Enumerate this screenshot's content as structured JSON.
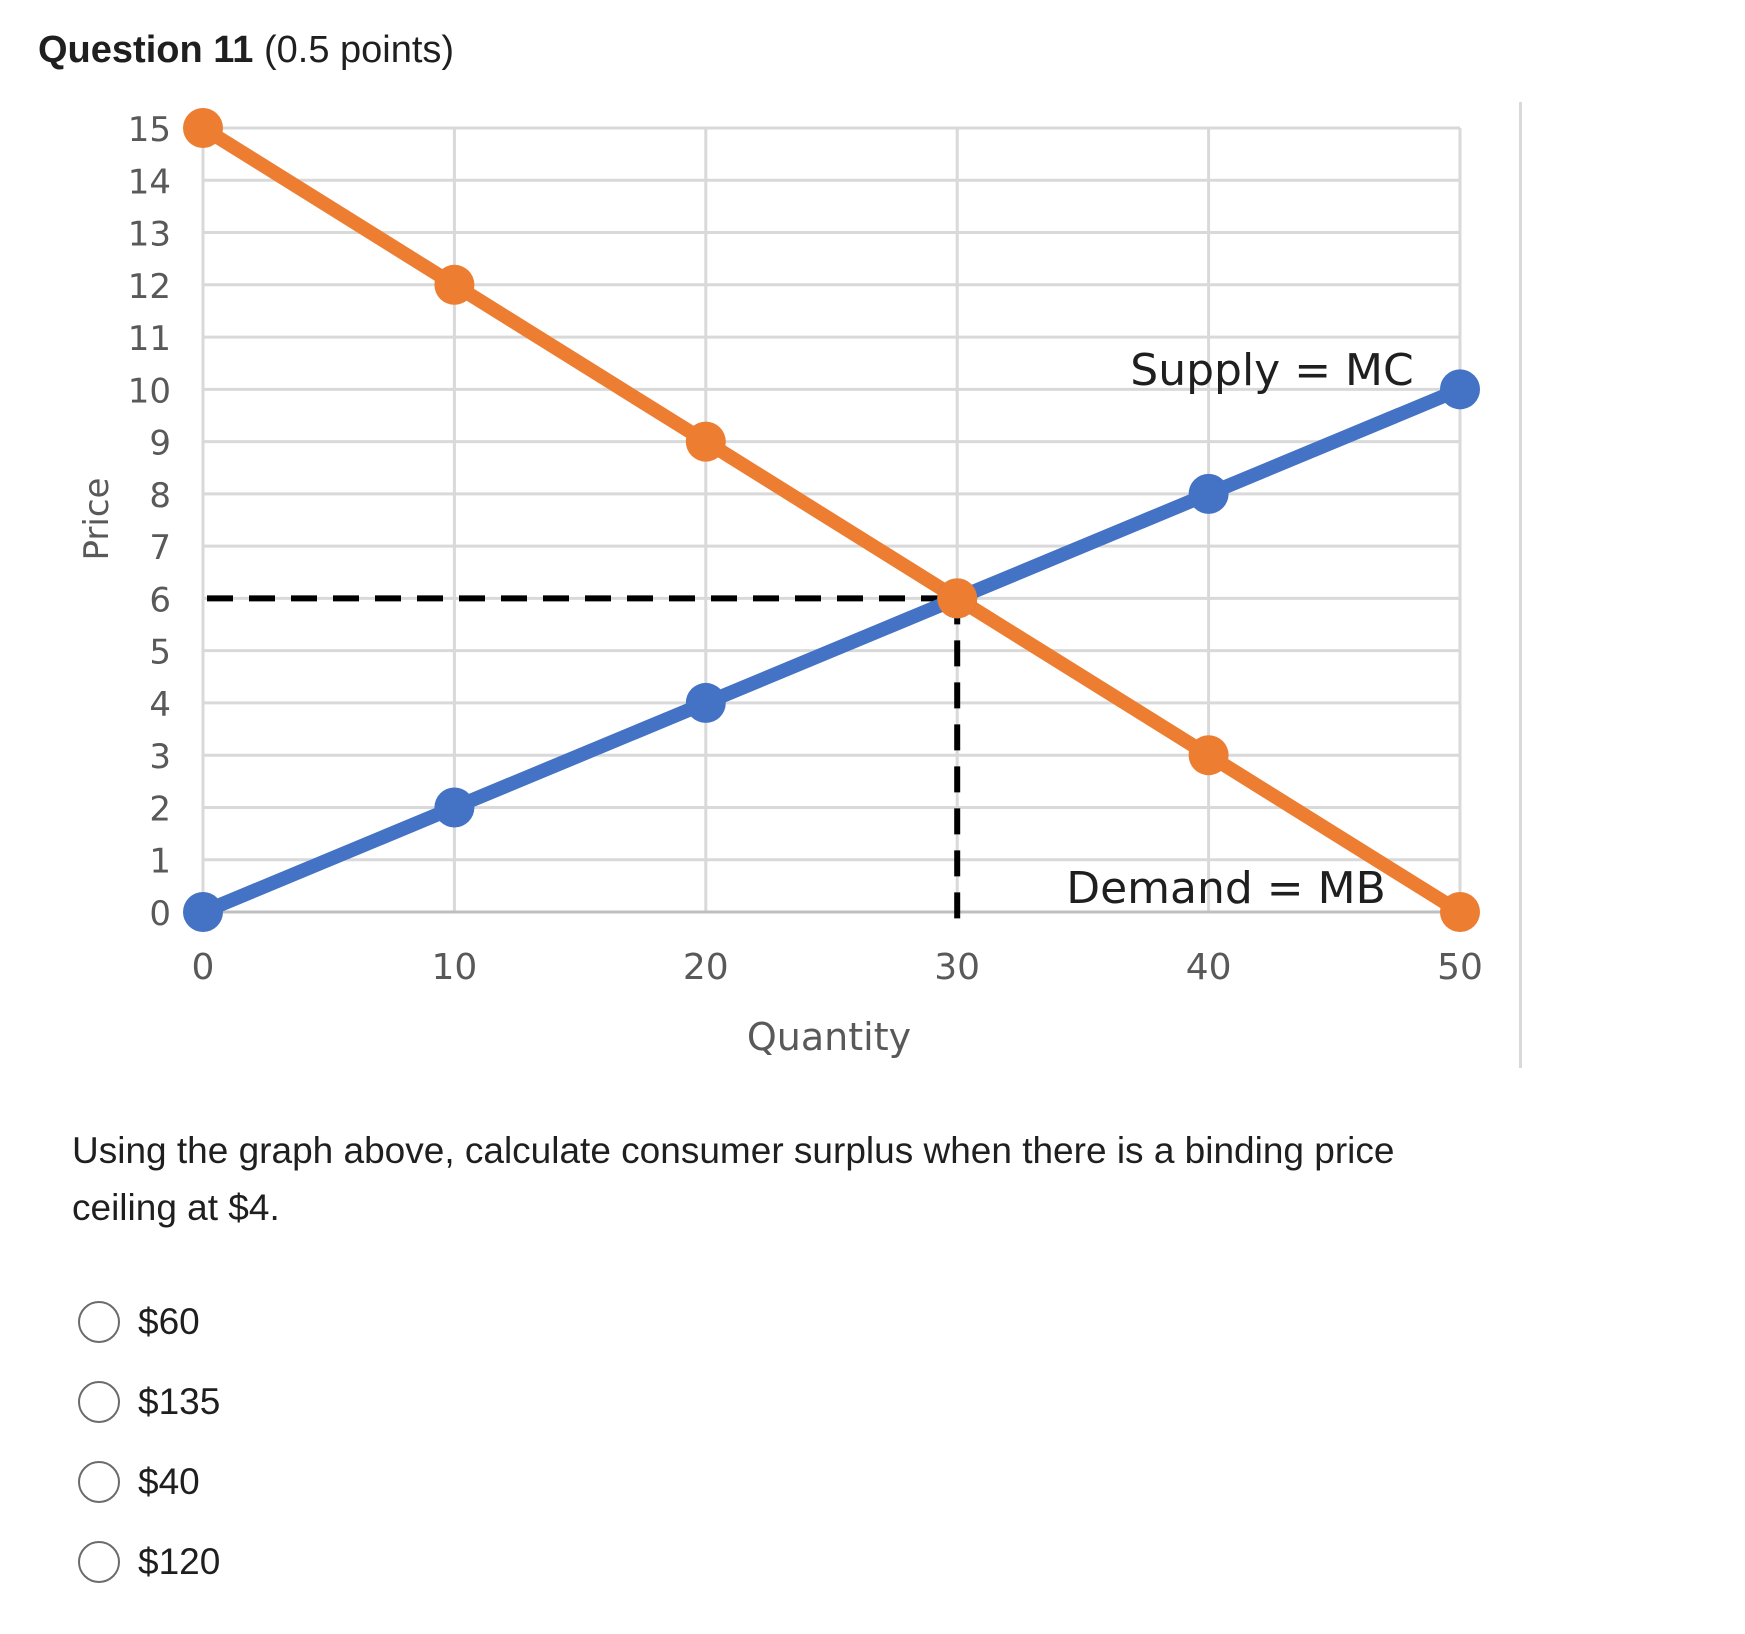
{
  "question": {
    "title": "Question 11",
    "points": "(0.5 points)",
    "prompt": "Using the graph above, calculate consumer surplus when there is a binding price ceiling at $4.",
    "choices": [
      "$60",
      "$135",
      "$40",
      "$120"
    ]
  },
  "chart_data": {
    "type": "line",
    "xlabel": "Quantity",
    "ylabel": "Price",
    "x_ticks": [
      "0",
      "10",
      "20",
      "30",
      "40",
      "50"
    ],
    "y_ticks": [
      "0",
      "1",
      "2",
      "3",
      "4",
      "5",
      "6",
      "7",
      "8",
      "9",
      "10",
      "11",
      "12",
      "13",
      "14",
      "15"
    ],
    "xlim": [
      0,
      50
    ],
    "ylim": [
      0,
      15
    ],
    "grid": true,
    "series": [
      {
        "name": "Supply = MC",
        "color": "#4472c4",
        "x": [
          0,
          10,
          20,
          30,
          40,
          50
        ],
        "y": [
          0,
          2,
          4,
          6,
          8,
          10
        ]
      },
      {
        "name": "Demand = MB",
        "color": "#ed7d31",
        "x": [
          0,
          10,
          20,
          30,
          40,
          50
        ],
        "y": [
          15,
          12,
          9,
          6,
          3,
          0
        ]
      }
    ],
    "equilibrium": {
      "x": 30,
      "y": 6
    }
  }
}
